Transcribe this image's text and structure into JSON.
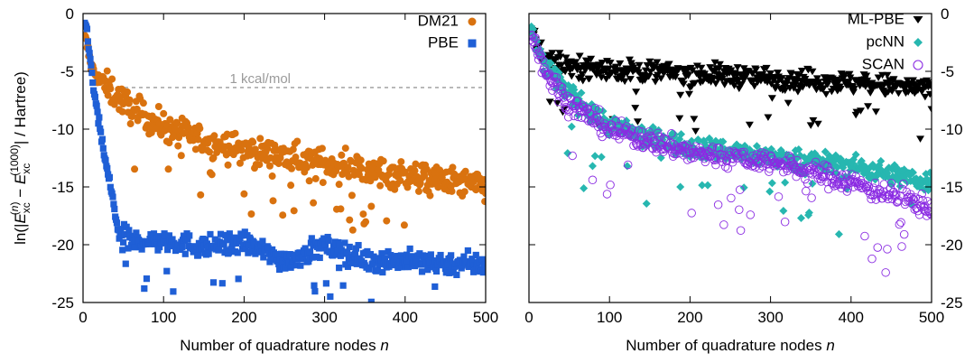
{
  "chart_data": [
    {
      "type": "scatter",
      "panel": "left",
      "xlabel_text": "Number of quadrature nodes ",
      "xlabel_var": "n",
      "ylabel": "ln(|E_xc^(n) − E_xc^(1000)| / Hartree)",
      "xlim": [
        0,
        500
      ],
      "ylim": [
        -25,
        0
      ],
      "xticks": [
        "0",
        "100",
        "200",
        "300",
        "400",
        "500"
      ],
      "yticks": [
        "0",
        "-5",
        "-10",
        "-15",
        "-20",
        "-25"
      ],
      "legend_position": "top-right",
      "annotation": {
        "text": "1 kcal/mol",
        "y": -6.4
      },
      "series": [
        {
          "name": "DM21",
          "marker": "circle",
          "color": "#d9720f",
          "trend": [
            [
              3,
              -2.2
            ],
            [
              10,
              -4.5
            ],
            [
              20,
              -5.8
            ],
            [
              40,
              -7
            ],
            [
              60,
              -8.2
            ],
            [
              100,
              -9.8
            ],
            [
              150,
              -11
            ],
            [
              200,
              -11.8
            ],
            [
              300,
              -13
            ],
            [
              400,
              -14
            ],
            [
              500,
              -15
            ]
          ]
        },
        {
          "name": "PBE",
          "marker": "square",
          "color": "#1f5fd6",
          "trend": [
            [
              3,
              -0.8
            ],
            [
              8,
              -3.5
            ],
            [
              14,
              -7
            ],
            [
              22,
              -10.5
            ],
            [
              30,
              -13.5
            ],
            [
              38,
              -16.5
            ],
            [
              45,
              -19.2
            ],
            [
              60,
              -19.7
            ],
            [
              100,
              -19.6
            ],
            [
              150,
              -20.2
            ],
            [
              200,
              -19.8
            ],
            [
              250,
              -21.4
            ],
            [
              300,
              -20.1
            ],
            [
              350,
              -21.3
            ],
            [
              400,
              -21.4
            ],
            [
              500,
              -21.8
            ]
          ]
        }
      ]
    },
    {
      "type": "scatter",
      "panel": "right",
      "xlabel_text": "Number of quadrature nodes ",
      "xlabel_var": "n",
      "xlim": [
        0,
        500
      ],
      "ylim": [
        -25,
        0
      ],
      "xticks": [
        "0",
        "100",
        "200",
        "300",
        "400",
        "500"
      ],
      "yticks": [
        "0",
        "-5",
        "-10",
        "-15",
        "-20",
        "-25"
      ],
      "legend_position": "top-right",
      "series": [
        {
          "name": "ML-PBE",
          "marker": "triangle-down",
          "color": "#000000",
          "trend": [
            [
              3,
              -1.5
            ],
            [
              20,
              -4
            ],
            [
              50,
              -4.5
            ],
            [
              100,
              -4.9
            ],
            [
              200,
              -5.2
            ],
            [
              300,
              -5.6
            ],
            [
              400,
              -6
            ],
            [
              500,
              -6.6
            ]
          ]
        },
        {
          "name": "pcNN",
          "marker": "diamond",
          "color": "#27b7b0",
          "trend": [
            [
              3,
              -1.5
            ],
            [
              20,
              -4.5
            ],
            [
              50,
              -7
            ],
            [
              100,
              -9.6
            ],
            [
              150,
              -10.8
            ],
            [
              200,
              -11.5
            ],
            [
              300,
              -12.4
            ],
            [
              400,
              -13.2
            ],
            [
              500,
              -14.6
            ]
          ]
        },
        {
          "name": "SCAN",
          "marker": "open-circle",
          "color": "#8a2be2",
          "trend": [
            [
              3,
              -1.5
            ],
            [
              20,
              -5
            ],
            [
              50,
              -7.8
            ],
            [
              100,
              -10
            ],
            [
              150,
              -11
            ],
            [
              200,
              -12
            ],
            [
              300,
              -12.8
            ],
            [
              400,
              -14.6
            ],
            [
              500,
              -16.8
            ]
          ]
        }
      ]
    }
  ]
}
